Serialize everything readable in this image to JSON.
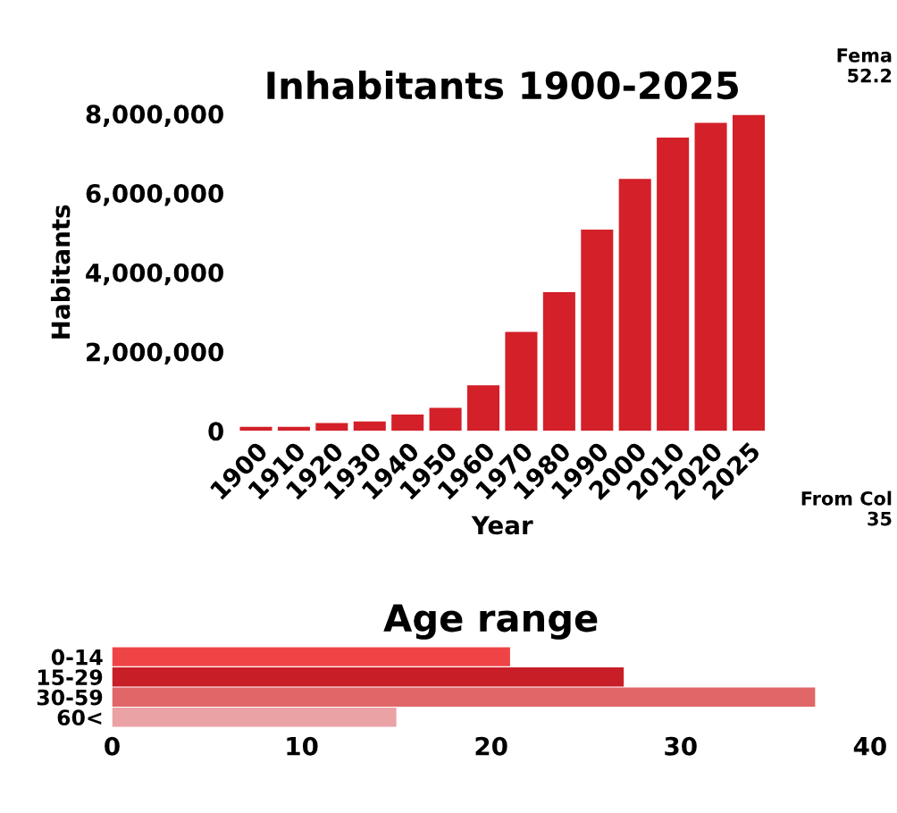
{
  "chart_data": [
    {
      "type": "bar",
      "title": "Inhabitants 1900-2025",
      "xlabel": "Year",
      "ylabel": "Habitants",
      "categories": [
        "1900",
        "1910",
        "1920",
        "1930",
        "1940",
        "1950",
        "1960",
        "1970",
        "1980",
        "1990",
        "2000",
        "2010",
        "2020",
        "2025"
      ],
      "values": [
        100000,
        100000,
        200000,
        240000,
        410000,
        580000,
        1150000,
        2500000,
        3500000,
        5080000,
        6360000,
        7400000,
        7770000,
        7970000
      ],
      "color": "#d42029",
      "ylim": [
        0,
        8000000
      ],
      "yticks": [
        {
          "value": 0,
          "label": "0"
        },
        {
          "value": 2000000,
          "label": "2,000,000"
        },
        {
          "value": 4000000,
          "label": "4,000,000"
        },
        {
          "value": 6000000,
          "label": "6,000,000"
        },
        {
          "value": 8000000,
          "label": "8,000,000"
        }
      ],
      "grid": false,
      "legend": false,
      "annotations": [
        "Fema",
        "52.2",
        "From Col",
        "35"
      ]
    },
    {
      "type": "bar",
      "title": "Age range",
      "orientation": "horizontal",
      "categories": [
        "0-14",
        "15-29",
        "30-59",
        "60<"
      ],
      "values": [
        21,
        27,
        37.1,
        15
      ],
      "colors": [
        "#ef4446",
        "#c81e28",
        "#e06668",
        "#eba2a5"
      ],
      "xlim": [
        0,
        40
      ],
      "xticks": [
        0,
        10,
        20,
        30,
        40
      ],
      "grid": false,
      "legend": false
    }
  ]
}
